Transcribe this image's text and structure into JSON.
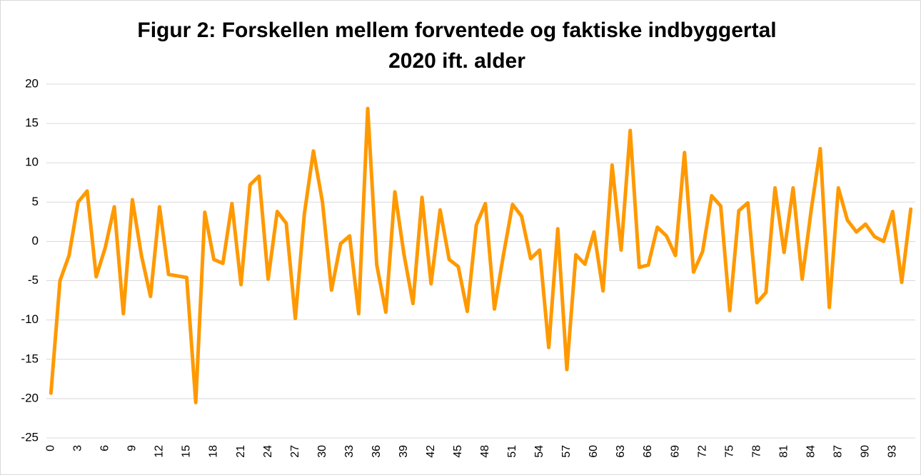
{
  "chart_data": {
    "type": "line",
    "title": [
      "Figur 2: Forskellen mellem forventede og faktiske indbyggertal",
      "2020 ift. alder"
    ],
    "categories": [
      "0",
      null,
      null,
      "3",
      null,
      null,
      "6",
      null,
      null,
      "9",
      null,
      null,
      "12",
      null,
      null,
      "15",
      null,
      null,
      "18",
      null,
      null,
      "21",
      null,
      null,
      "24",
      null,
      null,
      "27",
      null,
      null,
      "30",
      null,
      null,
      "33",
      null,
      null,
      "36",
      null,
      null,
      "39",
      null,
      null,
      "42",
      null,
      null,
      "45",
      null,
      null,
      "48",
      null,
      null,
      "51",
      null,
      null,
      "54",
      null,
      null,
      "57",
      null,
      null,
      "60",
      null,
      null,
      "63",
      null,
      null,
      "66",
      null,
      null,
      "69",
      null,
      null,
      "72",
      null,
      null,
      "75",
      null,
      null,
      "78",
      null,
      null,
      "81",
      null,
      null,
      "84",
      null,
      null,
      "87",
      null,
      null,
      "90",
      null,
      null,
      "93",
      null,
      null
    ],
    "series": [
      {
        "color": "#ff9900",
        "values": [
          -19.3,
          -5,
          -1.8,
          5,
          6.4,
          -4.5,
          -0.8,
          4.4,
          -9.2,
          5.3,
          -1.8,
          -7,
          4.4,
          -4.2,
          -4.4,
          -4.6,
          -20.5,
          3.7,
          -2.3,
          -2.8,
          4.8,
          -5.5,
          7.2,
          8.3,
          -4.8,
          3.8,
          2.3,
          -9.8,
          3.5,
          11.5,
          5,
          -6.2,
          -0.3,
          0.7,
          -9.2,
          16.9,
          -3,
          -9,
          6.3,
          -1.6,
          -7.9,
          5.6,
          -5.4,
          4,
          -2.3,
          -3.2,
          -8.9,
          2.1,
          4.8,
          -8.6,
          -1.7,
          4.7,
          3.2,
          -2.2,
          -1.1,
          -13.5,
          1.6,
          -16.3,
          -1.7,
          -2.9,
          1.2,
          -6.3,
          9.7,
          -1.1,
          14.1,
          -3.3,
          -3,
          1.8,
          0.7,
          -1.8,
          11.3,
          -3.9,
          -1.3,
          5.8,
          4.5,
          -8.8,
          3.9,
          4.9,
          -7.8,
          -6.5,
          6.8,
          -1.4,
          6.8,
          -4.8,
          4,
          11.8,
          -8.4,
          6.8,
          2.7,
          1.2,
          2.2,
          0.6,
          0,
          3.8,
          -5.2,
          4.1
        ]
      }
    ],
    "ylim": [
      -25,
      20
    ],
    "yticks": [
      -25,
      -20,
      -15,
      -10,
      -5,
      0,
      5,
      10,
      15,
      20
    ],
    "grid": true
  }
}
